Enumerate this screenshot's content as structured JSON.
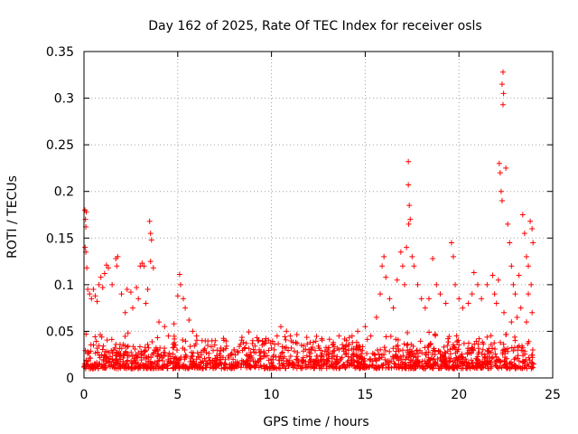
{
  "chart_data": {
    "type": "scatter",
    "title": "Day 162 of 2025, Rate Of TEC Index for receiver osls",
    "xlabel": "GPS time / hours",
    "ylabel": "ROTI / TECUs",
    "xlim": [
      0,
      25
    ],
    "ylim": [
      0,
      0.35
    ],
    "xticks": [
      0,
      5,
      10,
      15,
      20,
      25
    ],
    "xtick_labels": [
      "0",
      "5",
      "10",
      "15",
      "20",
      "25"
    ],
    "yticks": [
      0,
      0.05,
      0.1,
      0.15,
      0.2,
      0.25,
      0.3,
      0.35
    ],
    "ytick_labels": [
      "0",
      "0.05",
      "0.1",
      "0.15",
      "0.2",
      "0.25",
      "0.3",
      "0.35"
    ],
    "grid": true,
    "marker": "plus",
    "color": "#ff0000",
    "series": [
      {
        "points": [
          [
            0.05,
            0.18
          ],
          [
            0.08,
            0.17
          ],
          [
            0.1,
            0.162
          ],
          [
            0.12,
            0.178
          ],
          [
            0.06,
            0.14
          ],
          [
            0.1,
            0.135
          ],
          [
            0.15,
            0.118
          ],
          [
            0.2,
            0.095
          ],
          [
            0.3,
            0.09
          ],
          [
            0.4,
            0.085
          ],
          [
            0.5,
            0.095
          ],
          [
            0.6,
            0.088
          ],
          [
            0.7,
            0.082
          ],
          [
            0.8,
            0.1
          ],
          [
            0.9,
            0.108
          ],
          [
            1.0,
            0.097
          ],
          [
            1.1,
            0.112
          ],
          [
            1.2,
            0.121
          ],
          [
            1.3,
            0.118
          ],
          [
            1.5,
            0.1
          ],
          [
            1.7,
            0.128
          ],
          [
            1.75,
            0.12
          ],
          [
            1.8,
            0.13
          ],
          [
            2.0,
            0.09
          ],
          [
            2.3,
            0.095
          ],
          [
            2.5,
            0.092
          ],
          [
            2.8,
            0.097
          ],
          [
            3.0,
            0.12
          ],
          [
            3.1,
            0.123
          ],
          [
            3.2,
            0.12
          ],
          [
            3.5,
            0.168
          ],
          [
            3.55,
            0.155
          ],
          [
            3.6,
            0.148
          ],
          [
            3.55,
            0.125
          ],
          [
            3.7,
            0.118
          ],
          [
            3.4,
            0.095
          ],
          [
            3.3,
            0.08
          ],
          [
            2.9,
            0.085
          ],
          [
            2.6,
            0.075
          ],
          [
            2.2,
            0.07
          ],
          [
            4.0,
            0.06
          ],
          [
            4.3,
            0.055
          ],
          [
            4.5,
            0.045
          ],
          [
            4.8,
            0.058
          ],
          [
            5.0,
            0.088
          ],
          [
            5.1,
            0.111
          ],
          [
            5.15,
            0.1
          ],
          [
            5.3,
            0.085
          ],
          [
            5.4,
            0.075
          ],
          [
            5.6,
            0.062
          ],
          [
            5.8,
            0.05
          ],
          [
            6.0,
            0.045
          ],
          [
            6.3,
            0.04
          ],
          [
            6.6,
            0.035
          ],
          [
            7.0,
            0.04
          ],
          [
            7.3,
            0.032
          ],
          [
            7.6,
            0.034
          ],
          [
            8.0,
            0.03
          ],
          [
            8.5,
            0.038
          ],
          [
            9.0,
            0.04
          ],
          [
            9.5,
            0.035
          ],
          [
            10.0,
            0.032
          ],
          [
            10.3,
            0.045
          ],
          [
            10.5,
            0.055
          ],
          [
            10.8,
            0.05
          ],
          [
            11.0,
            0.045
          ],
          [
            11.3,
            0.038
          ],
          [
            11.6,
            0.035
          ],
          [
            12.0,
            0.03
          ],
          [
            12.5,
            0.034
          ],
          [
            13.0,
            0.03
          ],
          [
            13.3,
            0.038
          ],
          [
            13.6,
            0.045
          ],
          [
            14.0,
            0.04
          ],
          [
            14.3,
            0.045
          ],
          [
            14.6,
            0.05
          ],
          [
            15.0,
            0.055
          ],
          [
            15.3,
            0.045
          ],
          [
            15.6,
            0.065
          ],
          [
            15.8,
            0.09
          ],
          [
            15.9,
            0.12
          ],
          [
            16.0,
            0.13
          ],
          [
            16.1,
            0.108
          ],
          [
            16.3,
            0.085
          ],
          [
            16.5,
            0.075
          ],
          [
            16.7,
            0.105
          ],
          [
            16.9,
            0.135
          ],
          [
            17.0,
            0.12
          ],
          [
            17.1,
            0.1
          ],
          [
            17.2,
            0.14
          ],
          [
            17.3,
            0.232
          ],
          [
            17.3,
            0.207
          ],
          [
            17.35,
            0.185
          ],
          [
            17.32,
            0.165
          ],
          [
            17.4,
            0.17
          ],
          [
            17.5,
            0.13
          ],
          [
            17.6,
            0.12
          ],
          [
            17.8,
            0.1
          ],
          [
            18.0,
            0.085
          ],
          [
            18.2,
            0.075
          ],
          [
            18.4,
            0.085
          ],
          [
            18.6,
            0.128
          ],
          [
            18.8,
            0.1
          ],
          [
            19.0,
            0.09
          ],
          [
            19.3,
            0.08
          ],
          [
            19.6,
            0.145
          ],
          [
            19.7,
            0.13
          ],
          [
            19.8,
            0.1
          ],
          [
            20.0,
            0.085
          ],
          [
            20.2,
            0.075
          ],
          [
            20.5,
            0.08
          ],
          [
            20.7,
            0.09
          ],
          [
            20.8,
            0.113
          ],
          [
            21.0,
            0.1
          ],
          [
            21.2,
            0.085
          ],
          [
            21.5,
            0.1
          ],
          [
            21.8,
            0.11
          ],
          [
            21.9,
            0.09
          ],
          [
            22.0,
            0.08
          ],
          [
            22.1,
            0.105
          ],
          [
            22.15,
            0.23
          ],
          [
            22.2,
            0.22
          ],
          [
            22.25,
            0.2
          ],
          [
            22.3,
            0.19
          ],
          [
            22.35,
            0.328
          ],
          [
            22.3,
            0.315
          ],
          [
            22.38,
            0.305
          ],
          [
            22.35,
            0.293
          ],
          [
            22.5,
            0.225
          ],
          [
            22.6,
            0.165
          ],
          [
            22.7,
            0.145
          ],
          [
            22.8,
            0.12
          ],
          [
            22.9,
            0.1
          ],
          [
            23.0,
            0.09
          ],
          [
            23.2,
            0.11
          ],
          [
            23.4,
            0.175
          ],
          [
            23.5,
            0.155
          ],
          [
            23.6,
            0.13
          ],
          [
            23.7,
            0.12
          ],
          [
            23.8,
            0.168
          ],
          [
            23.9,
            0.16
          ],
          [
            23.95,
            0.145
          ],
          [
            23.85,
            0.1
          ],
          [
            23.7,
            0.09
          ],
          [
            23.9,
            0.07
          ],
          [
            23.6,
            0.06
          ],
          [
            23.3,
            0.075
          ],
          [
            23.1,
            0.065
          ],
          [
            22.8,
            0.06
          ],
          [
            22.4,
            0.07
          ]
        ]
      }
    ],
    "baseline_band": {
      "x_range": [
        0,
        24
      ],
      "typical_range": [
        0.01,
        0.05
      ]
    }
  }
}
